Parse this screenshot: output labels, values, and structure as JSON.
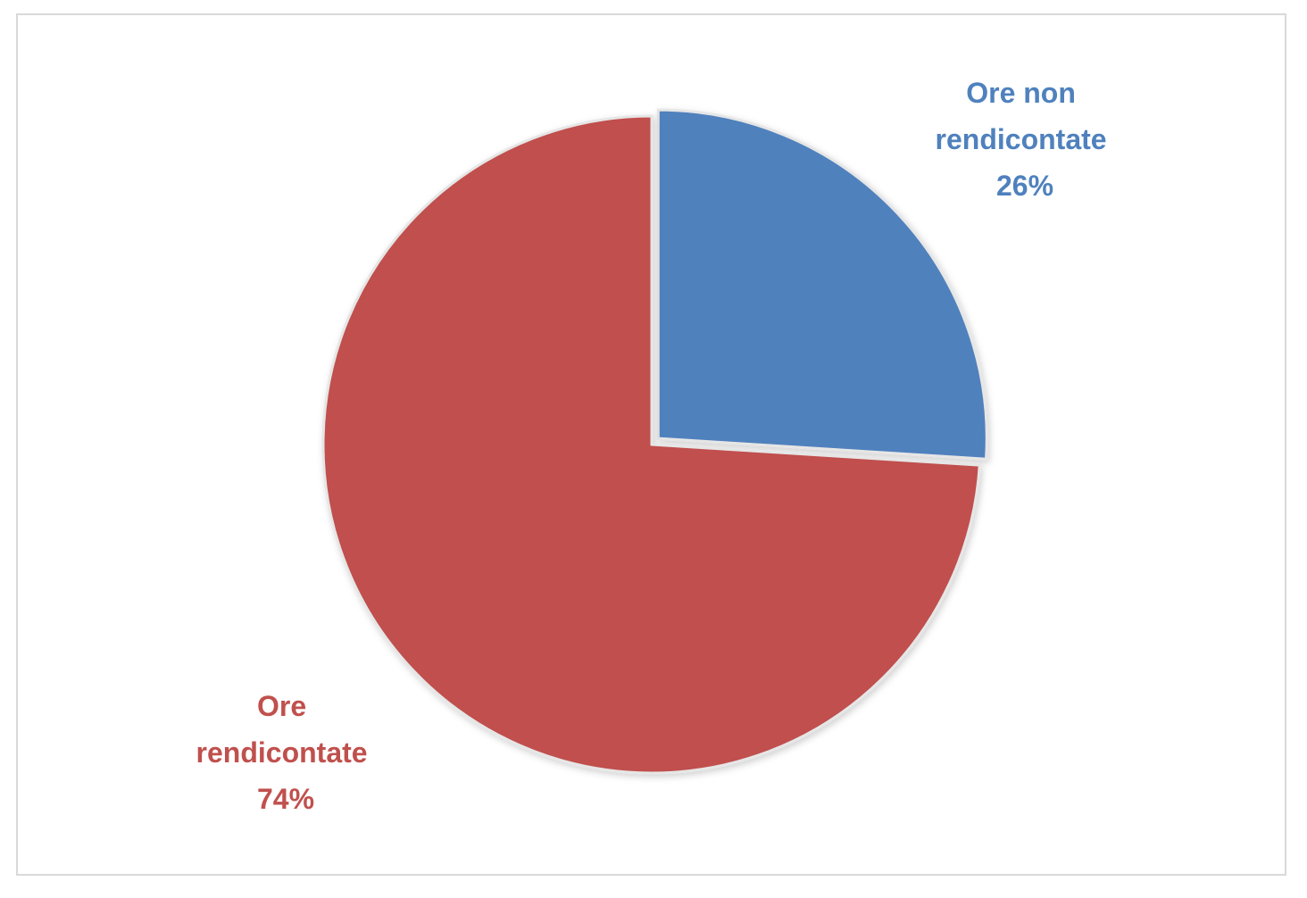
{
  "chart_data": {
    "type": "pie",
    "title": "",
    "slices": [
      {
        "label_line1": "Ore non",
        "label_line2": "rendicontate",
        "percent_label": "26%",
        "value": 26,
        "color": "#4F81BD"
      },
      {
        "label_line1": "Ore",
        "label_line2": "rendicontate",
        "percent_label": "74%",
        "value": 74,
        "color": "#C0504D"
      }
    ],
    "start_angle_deg": 0,
    "exploded_slice": 0,
    "legend": "none",
    "data_labels": "outside"
  }
}
